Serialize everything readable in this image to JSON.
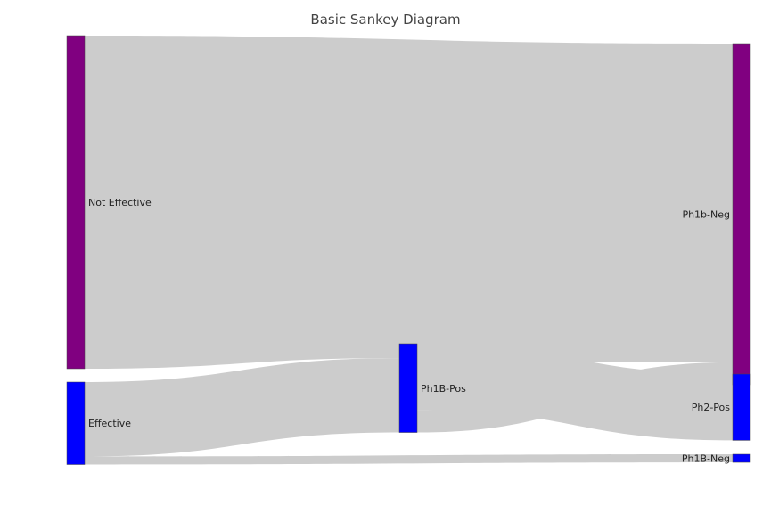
{
  "chart_data": {
    "type": "sankey",
    "title": "Basic Sankey Diagram",
    "nodes": [
      {
        "id": "not_effective",
        "label": "Not Effective",
        "color": "#800080",
        "column": 0
      },
      {
        "id": "effective",
        "label": "Effective",
        "color": "#0000ff",
        "column": 0
      },
      {
        "id": "ph1b_pos",
        "label": "Ph1B-Pos",
        "color": "#0000ff",
        "column": 1
      },
      {
        "id": "ph1b_neg_purple",
        "label": "Ph1b-Neg",
        "color": "#800080",
        "column": 2
      },
      {
        "id": "ph2_pos",
        "label": "Ph2-Pos",
        "color": "#0000ff",
        "column": 2
      },
      {
        "id": "ph1b_neg_blue",
        "label": "Ph1B-Neg",
        "color": "#0000ff",
        "column": 2
      }
    ],
    "links": [
      {
        "source": "not_effective",
        "target": "ph1b_neg_purple",
        "value": 356
      },
      {
        "source": "not_effective",
        "target": "ph1b_pos",
        "value": 16
      },
      {
        "source": "effective",
        "target": "ph1b_pos",
        "value": 83
      },
      {
        "source": "effective",
        "target": "ph1b_neg_blue",
        "value": 9
      },
      {
        "source": "ph1b_pos",
        "target": "ph2_pos",
        "value": 74
      },
      {
        "source": "ph1b_pos",
        "target": "ph1b_neg_purple",
        "value": 25
      }
    ],
    "link_color": "#cccccc"
  }
}
